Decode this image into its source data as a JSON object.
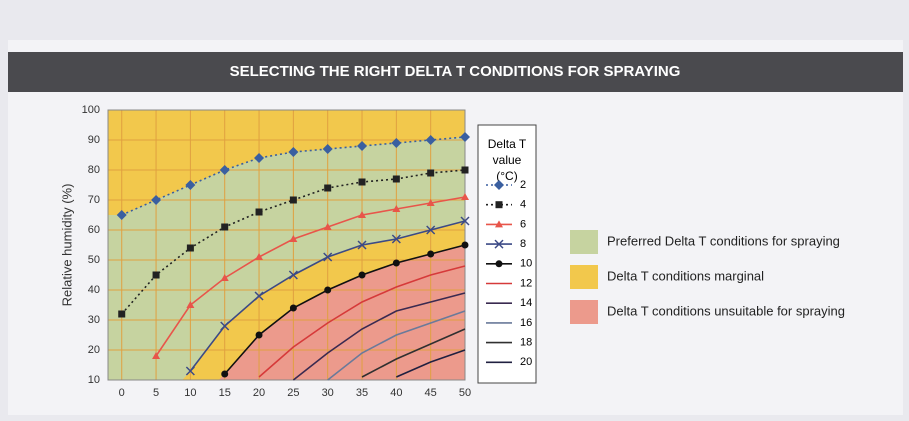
{
  "chart_data": {
    "type": "line",
    "title": "SELECTING THE RIGHT DELTA T CONDITIONS FOR SPRAYING",
    "y_label": "Relative humidity (%)",
    "legend_title": "Delta T value (°C)",
    "x": [
      0,
      5,
      10,
      15,
      20,
      25,
      30,
      35,
      40,
      45,
      50
    ],
    "xlim": [
      -2,
      50
    ],
    "xticks": [
      0,
      5,
      10,
      15,
      20,
      25,
      30,
      35,
      40,
      45,
      50
    ],
    "ylim": [
      10,
      100
    ],
    "yticks": [
      10,
      20,
      30,
      40,
      50,
      60,
      70,
      80,
      90,
      100
    ],
    "grid": true,
    "series": [
      {
        "name": "2",
        "color": "#3a5fa0",
        "dash": true,
        "marker": "diamond",
        "values": [
          65,
          70,
          75,
          80,
          84,
          86,
          87,
          88,
          89,
          90,
          91
        ]
      },
      {
        "name": "4",
        "color": "#222222",
        "dash": true,
        "marker": "square",
        "values": [
          32,
          45,
          54,
          61,
          66,
          70,
          74,
          76,
          77,
          79,
          80
        ]
      },
      {
        "name": "6",
        "color": "#e8554a",
        "dash": false,
        "marker": "triangle",
        "values": [
          null,
          18,
          35,
          44,
          51,
          57,
          61,
          65,
          67,
          69,
          71
        ]
      },
      {
        "name": "8",
        "color": "#3c4a86",
        "dash": false,
        "marker": "x",
        "values": [
          null,
          null,
          13,
          28,
          38,
          45,
          51,
          55,
          57,
          60,
          63
        ]
      },
      {
        "name": "10",
        "color": "#111111",
        "dash": false,
        "marker": "circle",
        "values": [
          null,
          null,
          null,
          12,
          25,
          34,
          40,
          45,
          49,
          52,
          55
        ]
      },
      {
        "name": "12",
        "color": "#d63a3a",
        "dash": false,
        "marker": "none",
        "values": [
          null,
          null,
          null,
          null,
          11,
          21,
          29,
          36,
          41,
          45,
          48
        ]
      },
      {
        "name": "14",
        "color": "#3a2a50",
        "dash": false,
        "marker": "none",
        "values": [
          null,
          null,
          null,
          null,
          null,
          10,
          19,
          27,
          33,
          36,
          39
        ]
      },
      {
        "name": "16",
        "color": "#6a7a9a",
        "dash": false,
        "marker": "none",
        "values": [
          null,
          null,
          null,
          null,
          null,
          null,
          10,
          19,
          25,
          29,
          33
        ]
      },
      {
        "name": "18",
        "color": "#303030",
        "dash": false,
        "marker": "none",
        "values": [
          null,
          null,
          null,
          null,
          null,
          null,
          null,
          11,
          17,
          22,
          27
        ]
      },
      {
        "name": "20",
        "color": "#202040",
        "dash": false,
        "marker": "none",
        "values": [
          null,
          null,
          null,
          null,
          null,
          null,
          null,
          null,
          11,
          16,
          20
        ]
      }
    ],
    "regions": [
      {
        "label": "Preferred Delta T conditions for spraying",
        "color": "#c6d3a0"
      },
      {
        "label": "Delta T conditions marginal",
        "color": "#f2c84c"
      },
      {
        "label": "Delta T conditions unsuitable for spraying",
        "color": "#ec9a8c"
      }
    ]
  }
}
